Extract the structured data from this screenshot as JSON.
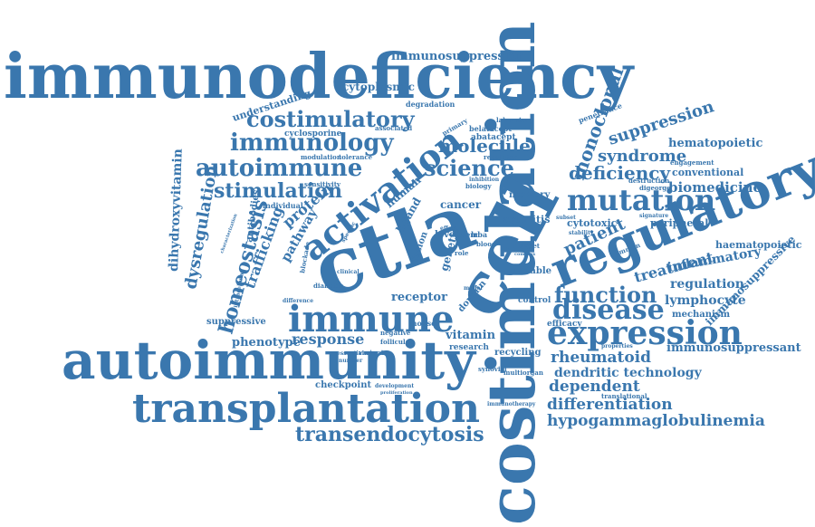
{
  "palette": {
    "word_color": "#3a77ae",
    "background": "#ffffff"
  },
  "words": [
    "immunodeficiency",
    "costimulation",
    "ctla",
    "cell",
    "autoimmunity",
    "regulatory",
    "transplantation",
    "immune",
    "activation",
    "expression",
    "mutation",
    "disease",
    "function",
    "immunology",
    "costimulatory",
    "autoimmune",
    "stimulation",
    "science",
    "molecule",
    "transendocytosis",
    "immunosuppression",
    "hypogammaglobulinemia",
    "differentiation",
    "rheumatoid",
    "dependent",
    "deficiency",
    "monoclonal",
    "suppression",
    "syndrome",
    "hematopoietic",
    "biomedicine",
    "inflammatory",
    "regulation",
    "lymphocyte",
    "immunosuppressant",
    "immunosuppressive",
    "haematopoietic",
    "treatment",
    "patient",
    "homeostasis",
    "dysregulation",
    "dihydroxyvitamin",
    "trafficking",
    "pathway",
    "protein",
    "response",
    "phenotype",
    "receptor",
    "vitamin",
    "cytoplasmic",
    "dendritic technology",
    "understanding",
    "cyclosporine",
    "abatacept",
    "belatacept",
    "checkpoint",
    "suppressive",
    "antibodies",
    "cytotoxic",
    "peripheral",
    "conventional",
    "mechanism",
    "arthritis",
    "memory",
    "cancer",
    "genetic",
    "human",
    "ligand",
    "fusion",
    "level",
    "domain",
    "variable",
    "control",
    "efficacy",
    "recycling",
    "research",
    "multiorgan",
    "synovial",
    "immunotherapy",
    "translational",
    "mouse",
    "degradation",
    "penetrance",
    "engagement",
    "modulation",
    "tolerance",
    "sensitivity",
    "individual",
    "intracellular",
    "diabetes",
    "characterization",
    "follicular",
    "negative",
    "variant",
    "properties",
    "destruction",
    "digeorge",
    "primary",
    "laboratory",
    "associated",
    "regulator",
    "biology",
    "effect",
    "stability",
    "target",
    "common",
    "blood",
    "role",
    "stem",
    "lrba",
    "model",
    "complex",
    "clinical",
    "blockade",
    "difference",
    "development",
    "proliferation",
    "essential",
    "number",
    "inhibition",
    "signature",
    "subset",
    "specific"
  ]
}
